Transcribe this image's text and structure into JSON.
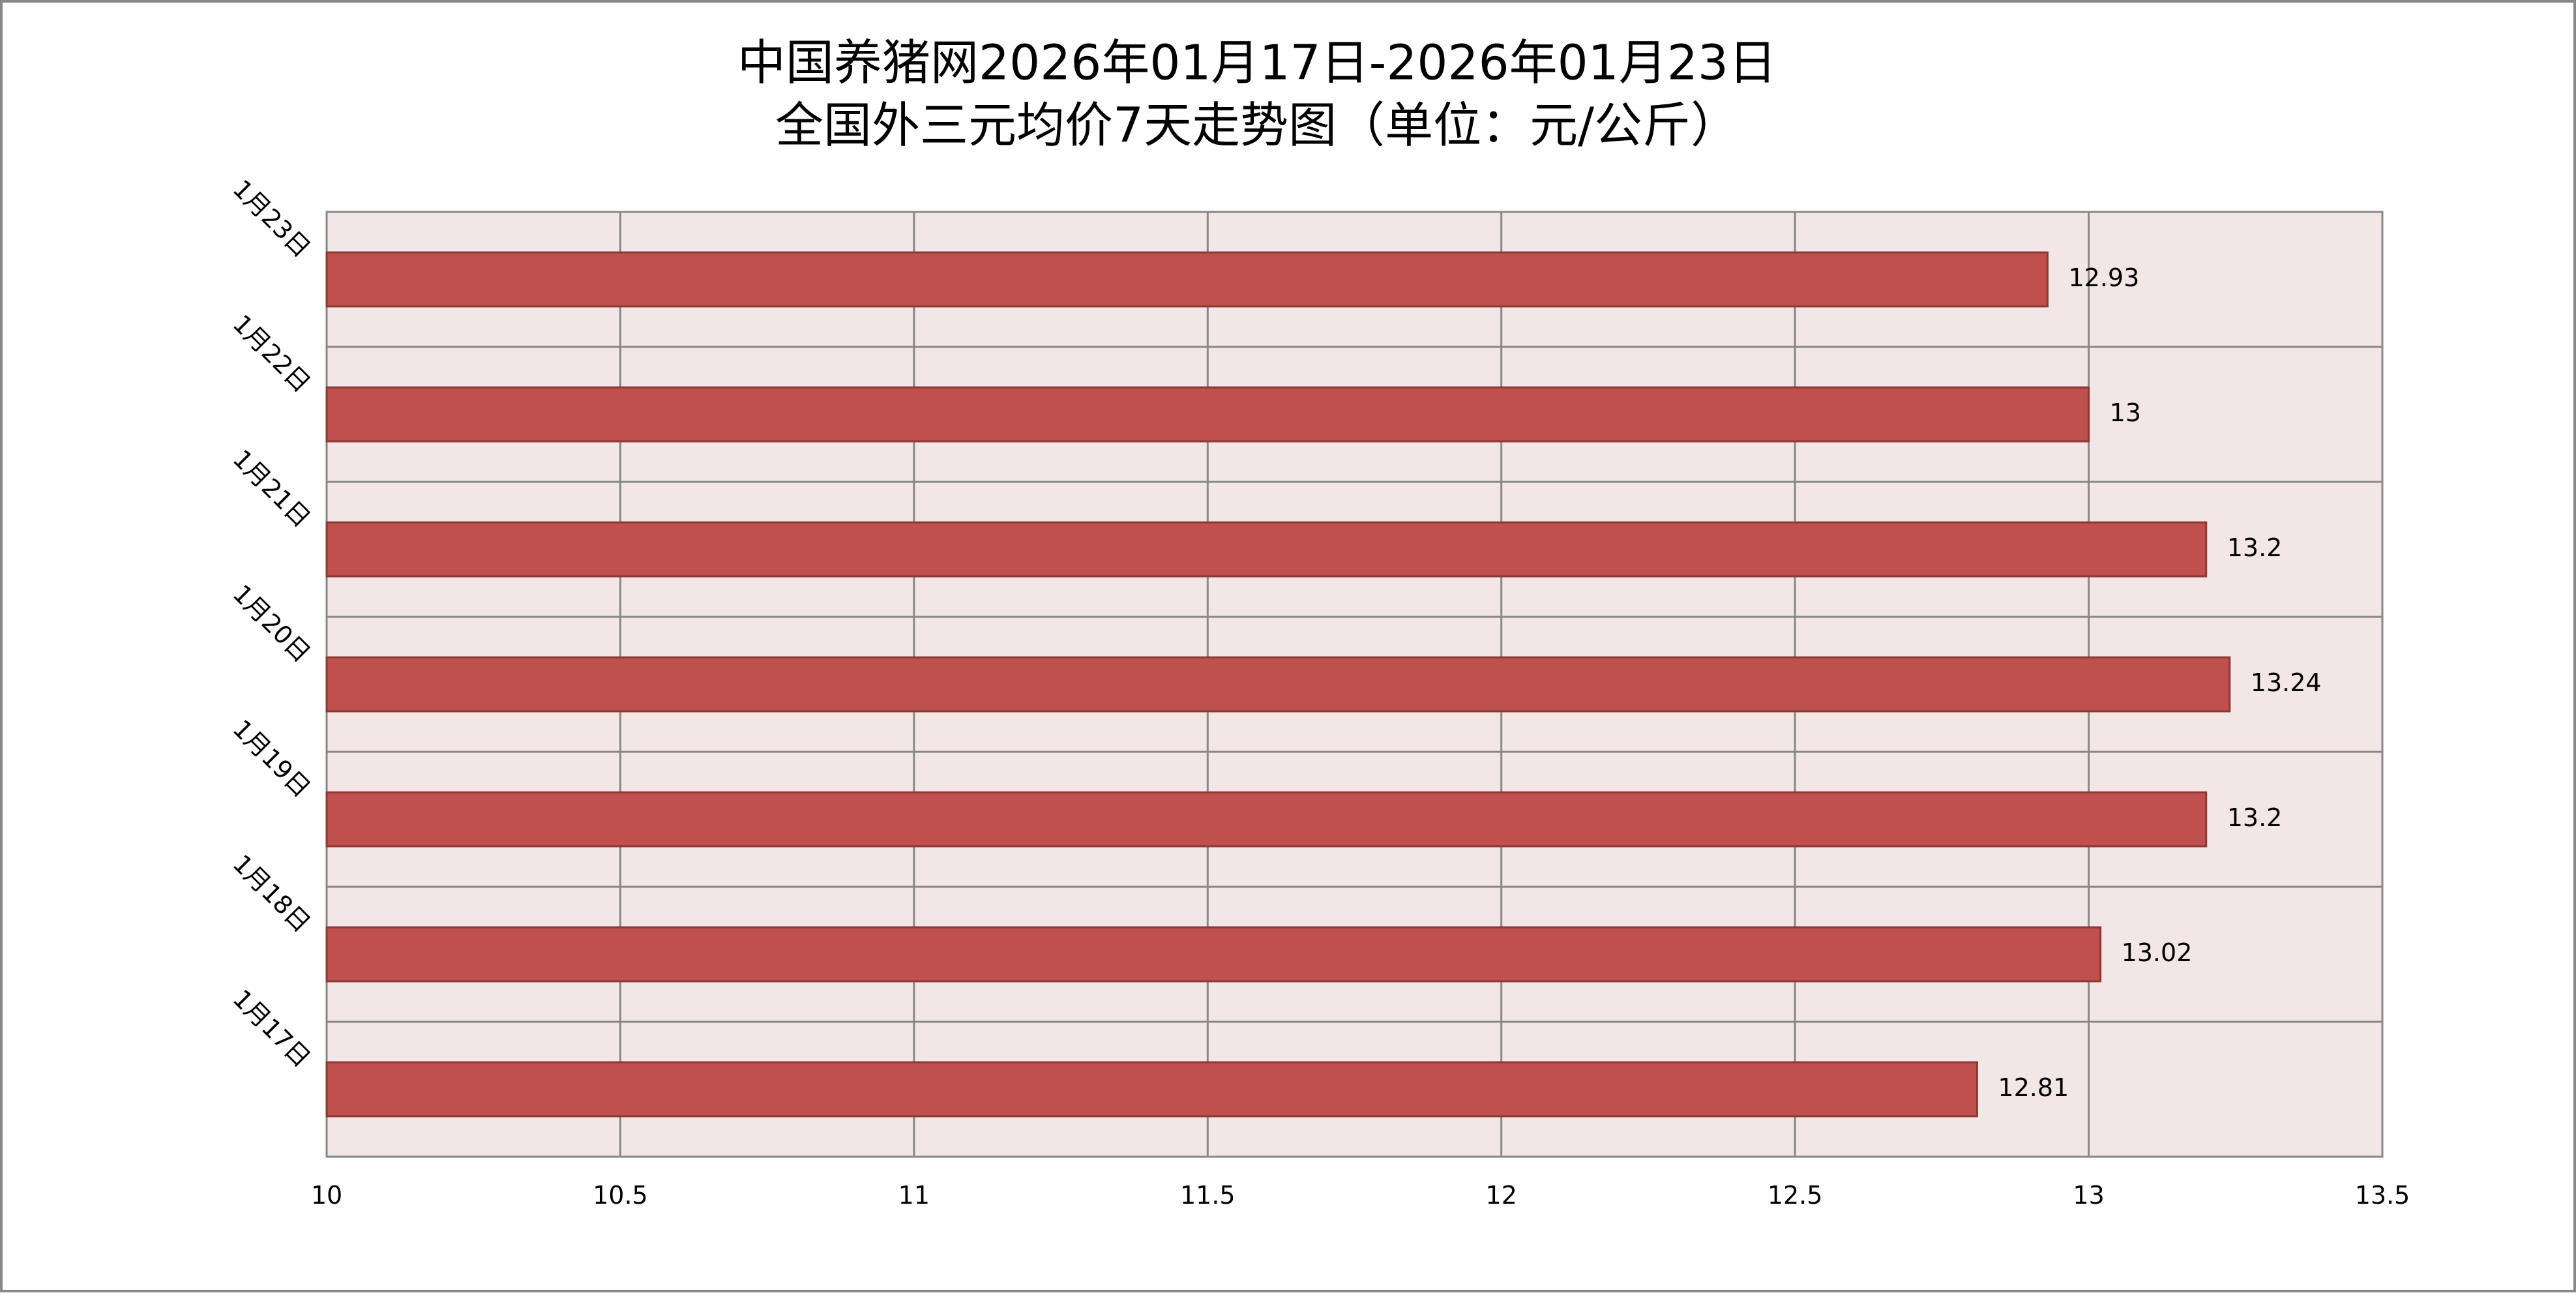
{
  "chart_data": {
    "type": "bar",
    "orientation": "horizontal",
    "title": [
      "中国养猪网2026年01月17日-2026年01月23日",
      "全国外三元均价7天走势图（单位：元/公斤）"
    ],
    "categories": [
      "1月23日",
      "1月22日",
      "1月21日",
      "1月20日",
      "1月19日",
      "1月18日",
      "1月17日"
    ],
    "values": [
      12.93,
      13,
      13.2,
      13.24,
      13.2,
      13.02,
      12.81
    ],
    "color": "#c0504d",
    "xlim": [
      10,
      13.5
    ],
    "xticks": [
      10,
      10.5,
      11,
      11.5,
      12,
      12.5,
      13,
      13.5
    ],
    "grid": true
  }
}
